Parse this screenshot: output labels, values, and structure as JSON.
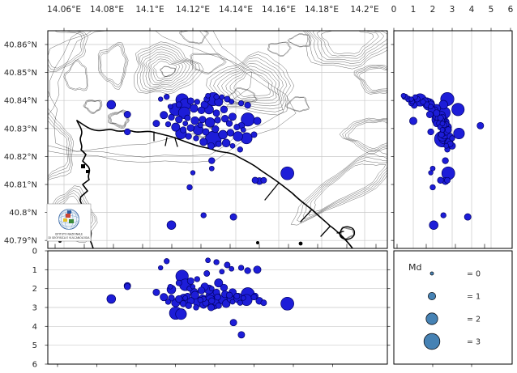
{
  "map_axes": {
    "lon_ticks": [
      {
        "label": "14.06°E",
        "lon": 14.06
      },
      {
        "label": "14.08°E",
        "lon": 14.08
      },
      {
        "label": "14.1°E",
        "lon": 14.1
      },
      {
        "label": "14.12°E",
        "lon": 14.12
      },
      {
        "label": "14.14°E",
        "lon": 14.14
      },
      {
        "label": "14.16°E",
        "lon": 14.16
      },
      {
        "label": "14.18°E",
        "lon": 14.18
      },
      {
        "label": "14.2°E",
        "lon": 14.2
      }
    ],
    "lat_ticks": [
      {
        "label": "40.86°N",
        "lat": 40.86
      },
      {
        "label": "40.85°N",
        "lat": 40.85
      },
      {
        "label": "40.84°N",
        "lat": 40.84
      },
      {
        "label": "40.83°N",
        "lat": 40.83
      },
      {
        "label": "40.82°N",
        "lat": 40.82
      },
      {
        "label": "40.81°N",
        "lat": 40.81
      },
      {
        "label": "40.8°N",
        "lat": 40.8
      },
      {
        "label": "40.79°N",
        "lat": 40.79
      }
    ]
  },
  "depth_axes": {
    "right_panel_top_ticks": [
      "0",
      "1",
      "2",
      "3",
      "4",
      "5",
      "6"
    ],
    "bottom_panel_left_ticks": [
      "0",
      "1",
      "2",
      "3",
      "4",
      "5",
      "6"
    ]
  },
  "legend": {
    "title": "Md",
    "entries": [
      {
        "label": "= 0",
        "md": 0
      },
      {
        "label": "= 1",
        "md": 1
      },
      {
        "label": "= 2",
        "md": 2
      },
      {
        "label": "= 3",
        "md": 3
      }
    ]
  },
  "logo": {
    "lines": [
      "ISTITUTO NAZIONALE",
      "DI GEOFISICA E VULCANOLOGIA"
    ]
  },
  "colors": {
    "event_fill": "#1d1dd8",
    "event_edge": "#000066",
    "legend_fill": "#4682b4",
    "legend_edge": "#10151c",
    "grid": "#c9c9c9",
    "contour": "#3d3d3d",
    "coast": "#000000",
    "text": "#262626"
  },
  "chart_data": {
    "type": "scatter",
    "panels": {
      "map": {
        "x": "longitude_deg_E",
        "y": "latitude_deg_N",
        "xlim": [
          14.0525,
          14.2106
        ],
        "ylim": [
          40.7872,
          40.8651
        ],
        "grid": true
      },
      "right": {
        "x": "depth_km",
        "y": "latitude_deg_N",
        "xlim": [
          0,
          6.08
        ],
        "grid": true
      },
      "bottom": {
        "x": "longitude_deg_E",
        "y": "depth_km",
        "ylim": [
          0,
          6
        ],
        "grid": true
      }
    },
    "size_legend": "Md",
    "size_rule": "radius_px = 2 + 2.6 * Md",
    "event_fields": [
      "lon_deg_E",
      "lat_deg_N",
      "depth_km",
      "Md"
    ],
    "events": [
      [
        14.105,
        40.8405,
        0.9,
        0.3
      ],
      [
        14.115,
        40.8402,
        1.35,
        2.2
      ],
      [
        14.1165,
        40.8386,
        1.8,
        2.0
      ],
      [
        14.119,
        40.8398,
        1.6,
        0.8
      ],
      [
        14.122,
        40.8395,
        1.5,
        0.5
      ],
      [
        14.1295,
        40.8405,
        2.75,
        2.4
      ],
      [
        14.132,
        40.8395,
        1.7,
        1.2
      ],
      [
        14.1255,
        40.8385,
        1.9,
        1.0
      ],
      [
        14.112,
        40.8368,
        3.3,
        2.2
      ],
      [
        14.116,
        40.8356,
        2.6,
        2.0
      ],
      [
        14.1205,
        40.8372,
        2.2,
        1.1
      ],
      [
        14.124,
        40.8365,
        2.1,
        0.9
      ],
      [
        14.1275,
        40.8368,
        2.05,
        1.4
      ],
      [
        14.131,
        40.8355,
        2.2,
        0.8
      ],
      [
        14.1345,
        40.8368,
        1.95,
        0.9
      ],
      [
        14.1065,
        40.8348,
        2.45,
        1.0
      ],
      [
        14.11,
        40.834,
        2.5,
        0.7
      ],
      [
        14.1135,
        40.8332,
        2.55,
        0.9
      ],
      [
        14.1175,
        40.8338,
        2.4,
        0.6
      ],
      [
        14.121,
        40.8328,
        2.35,
        1.1
      ],
      [
        14.1245,
        40.8332,
        2.5,
        0.8
      ],
      [
        14.128,
        40.8322,
        2.6,
        1.5
      ],
      [
        14.1315,
        40.833,
        2.45,
        0.7
      ],
      [
        14.135,
        40.8335,
        2.3,
        0.9
      ],
      [
        14.1385,
        40.8342,
        2.2,
        1.0
      ],
      [
        14.1456,
        40.8332,
        2.3,
        2.4
      ],
      [
        14.15,
        40.8327,
        1.0,
        1.0
      ],
      [
        14.1085,
        40.8315,
        2.7,
        0.5
      ],
      [
        14.112,
        40.8305,
        2.75,
        1.2
      ],
      [
        14.1155,
        40.8295,
        2.8,
        0.7
      ],
      [
        14.119,
        40.8302,
        2.65,
        0.9
      ],
      [
        14.1225,
        40.8295,
        2.7,
        1.6
      ],
      [
        14.126,
        40.8288,
        2.75,
        0.8
      ],
      [
        14.1295,
        40.8262,
        2.5,
        3.0
      ],
      [
        14.134,
        40.8278,
        2.6,
        1.3
      ],
      [
        14.1375,
        40.8285,
        2.55,
        0.9
      ],
      [
        14.141,
        40.8272,
        2.5,
        1.5
      ],
      [
        14.145,
        40.8265,
        2.6,
        1.9
      ],
      [
        14.1485,
        40.8278,
        2.45,
        0.6
      ],
      [
        14.1145,
        40.8282,
        3.35,
        1.8
      ],
      [
        14.118,
        40.8272,
        2.9,
        0.7
      ],
      [
        14.1215,
        40.8265,
        3.0,
        0.5
      ],
      [
        14.125,
        40.8252,
        2.85,
        1.0
      ],
      [
        14.1285,
        40.8238,
        3.0,
        0.8
      ],
      [
        14.132,
        40.8245,
        2.9,
        0.6
      ],
      [
        14.1355,
        40.8248,
        2.8,
        1.1
      ],
      [
        14.103,
        40.8318,
        2.2,
        0.8
      ],
      [
        14.1385,
        40.8238,
        2.7,
        0.4
      ],
      [
        14.142,
        40.8225,
        2.75,
        0.5
      ],
      [
        14.1288,
        40.8185,
        2.65,
        0.7
      ],
      [
        14.1288,
        40.8157,
        2.0,
        0.4
      ],
      [
        14.12,
        40.8142,
        1.9,
        0.3
      ],
      [
        14.1185,
        40.809,
        2.0,
        0.5
      ],
      [
        14.149,
        40.8115,
        2.4,
        0.7
      ],
      [
        14.151,
        40.8112,
        2.65,
        0.9
      ],
      [
        14.153,
        40.8115,
        2.75,
        0.6
      ],
      [
        14.164,
        40.814,
        2.8,
        2.3
      ],
      [
        14.082,
        40.8385,
        2.55,
        1.3
      ],
      [
        14.0895,
        40.835,
        1.85,
        0.8
      ],
      [
        14.0895,
        40.8288,
        1.9,
        0.7
      ],
      [
        14.11,
        40.7955,
        2.05,
        1.3
      ],
      [
        14.125,
        40.799,
        2.55,
        0.5
      ],
      [
        14.1389,
        40.7984,
        3.8,
        0.8
      ],
      [
        14.1426,
        40.831,
        4.45,
        0.8
      ],
      [
        14.1078,
        40.8413,
        0.55,
        0.5
      ],
      [
        14.127,
        40.8417,
        0.5,
        0.4
      ],
      [
        14.131,
        40.8413,
        0.6,
        0.5
      ],
      [
        14.136,
        40.8405,
        0.75,
        0.6
      ],
      [
        14.138,
        40.8396,
        0.95,
        0.4
      ],
      [
        14.1425,
        40.839,
        0.9,
        0.5
      ],
      [
        14.1455,
        40.8383,
        1.05,
        0.7
      ],
      [
        14.1095,
        40.8378,
        1.9,
        0.4
      ],
      [
        14.1135,
        40.8385,
        1.7,
        0.6
      ],
      [
        14.1265,
        40.8405,
        1.2,
        0.6
      ],
      [
        14.1335,
        40.8412,
        1.1,
        0.4
      ],
      [
        14.1165,
        40.8318,
        2.5,
        0.4
      ],
      [
        14.1235,
        40.8312,
        2.6,
        0.5
      ],
      [
        14.1305,
        40.8298,
        2.7,
        0.9
      ],
      [
        14.1405,
        40.8305,
        2.4,
        0.6
      ],
      [
        14.1435,
        40.8295,
        2.5,
        0.4
      ],
      [
        14.137,
        40.8318,
        2.35,
        0.7
      ]
    ]
  }
}
